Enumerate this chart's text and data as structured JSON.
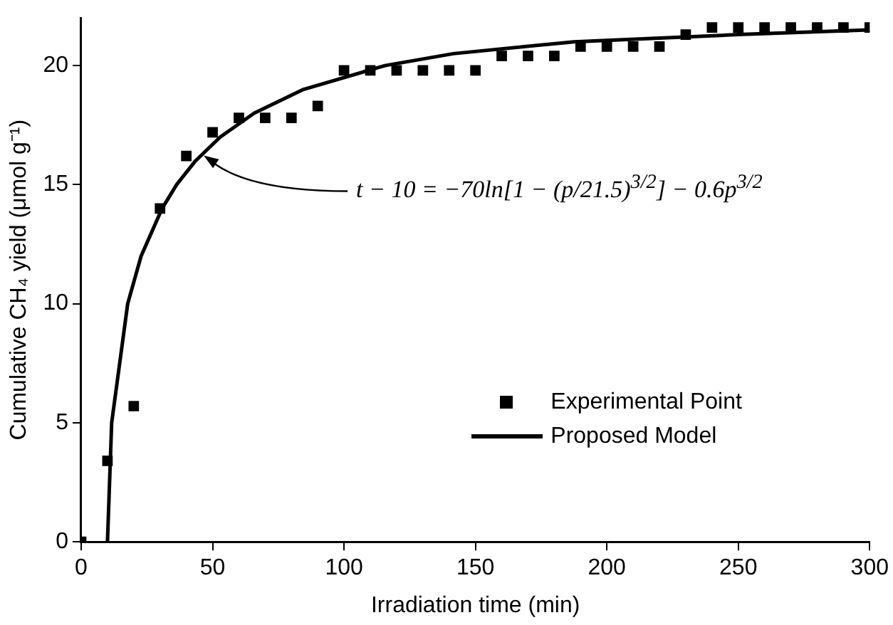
{
  "chart_data": {
    "type": "scatter",
    "xlabel": "Irradiation time (min)",
    "ylabel": "Cumulative CH₄ yield (μmol g⁻¹)",
    "xlim": [
      0,
      300
    ],
    "xticks": [
      0,
      50,
      100,
      150,
      200,
      250,
      300
    ],
    "ylim": [
      0,
      22
    ],
    "yticks": [
      0,
      5,
      10,
      15,
      20
    ],
    "grid": false,
    "legend": "bottom right",
    "series": [
      {
        "name": "Experimental Point",
        "marker": "square",
        "color": "#000000",
        "x": [
          0,
          10,
          20,
          30,
          40,
          50,
          60,
          70,
          80,
          90,
          100,
          110,
          120,
          130,
          140,
          150,
          160,
          170,
          180,
          190,
          200,
          210,
          220,
          230,
          240,
          250,
          260,
          270,
          280,
          290,
          300
        ],
        "values": [
          0,
          3.4,
          5.7,
          14.0,
          16.2,
          17.2,
          17.8,
          17.8,
          17.8,
          18.3,
          19.8,
          19.8,
          19.8,
          19.8,
          19.8,
          19.8,
          20.4,
          20.4,
          20.4,
          20.8,
          20.8,
          20.8,
          20.8,
          21.3,
          21.6,
          21.6,
          21.6,
          21.6,
          21.6,
          21.6,
          21.6
        ]
      },
      {
        "name": "Proposed Model",
        "type": "line",
        "marker": "none",
        "line_style": "solid",
        "color": "#000000",
        "x": [
          10,
          11.6,
          17.7,
          22.8,
          30.8,
          36.3,
          43.5,
          52.9,
          65.8,
          84.6,
          115.6,
          141.6,
          187.5,
          250,
          300
        ],
        "values": [
          0,
          5,
          10,
          12,
          14,
          15,
          16,
          17,
          18,
          19,
          20,
          20.5,
          21,
          21.3,
          21.5
        ]
      }
    ],
    "annotations": [
      {
        "text": "t − 10 = −70ln[1 − (p/21.5)$^{3/2}$] − 0.6p$^{3/2}$",
        "x": 45,
        "y": 16.4
      }
    ]
  }
}
